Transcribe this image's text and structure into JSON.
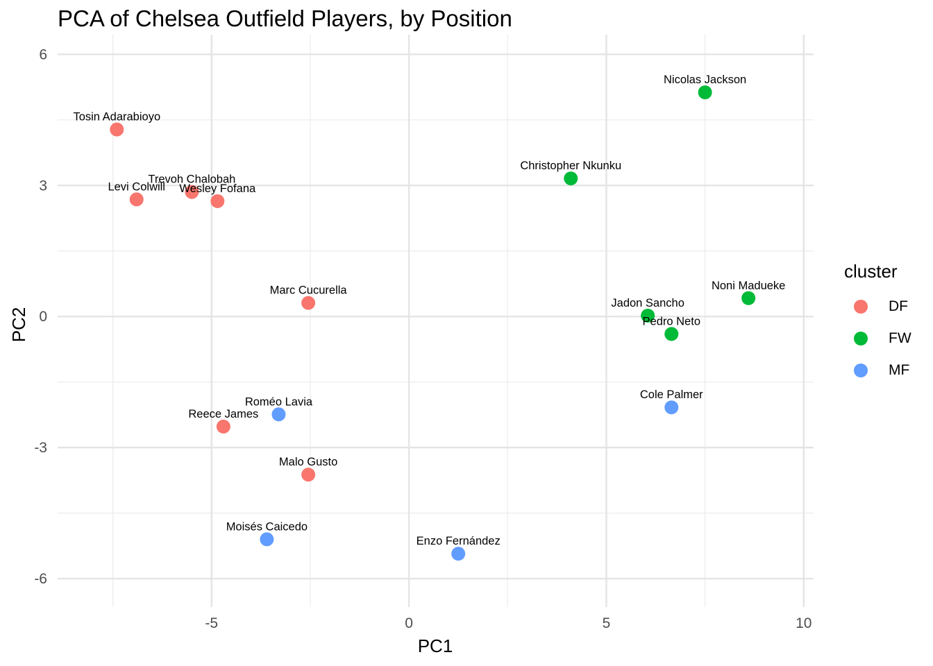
{
  "chart_data": {
    "type": "scatter",
    "title": "PCA of Chelsea Outfield Players, by Position",
    "xlabel": "PC1",
    "ylabel": "PC2",
    "xlim": [
      -8.9,
      10.25
    ],
    "ylim": [
      -6.65,
      6.45
    ],
    "xticks": [
      -5,
      0,
      5,
      10
    ],
    "yticks": [
      -6,
      -3,
      0,
      3,
      6
    ],
    "xtick_labels": [
      "-5",
      "0",
      "5",
      "10"
    ],
    "ytick_labels": [
      "-6",
      "-3",
      "0",
      "3",
      "6"
    ],
    "grid": true,
    "legend": {
      "title": "cluster",
      "placement": "right",
      "entries": [
        {
          "label": "DF",
          "color": "#F8766D"
        },
        {
          "label": "FW",
          "color": "#00BA38"
        },
        {
          "label": "MF",
          "color": "#619CFF"
        }
      ]
    },
    "series": [
      {
        "name": "DF",
        "color": "#F8766D",
        "points": [
          {
            "label": "Tosin Adarabioyo",
            "x": -7.4,
            "y": 4.28
          },
          {
            "label": "Levi Colwill",
            "x": -6.9,
            "y": 2.68
          },
          {
            "label": "Trevoh Chalobah",
            "x": -5.5,
            "y": 2.85
          },
          {
            "label": "Wesley Fofana",
            "x": -4.85,
            "y": 2.64
          },
          {
            "label": "Marc Cucurella",
            "x": -2.55,
            "y": 0.31
          },
          {
            "label": "Reece James",
            "x": -4.7,
            "y": -2.52
          },
          {
            "label": "Malo Gusto",
            "x": -2.55,
            "y": -3.62
          }
        ]
      },
      {
        "name": "FW",
        "color": "#00BA38",
        "points": [
          {
            "label": "Nicolas Jackson",
            "x": 7.5,
            "y": 5.13
          },
          {
            "label": "Christopher Nkunku",
            "x": 4.1,
            "y": 3.16
          },
          {
            "label": "Noni Madueke",
            "x": 8.6,
            "y": 0.42
          },
          {
            "label": "Jadon Sancho",
            "x": 6.05,
            "y": 0.02
          },
          {
            "label": "Pedro Neto",
            "x": 6.65,
            "y": -0.4
          }
        ]
      },
      {
        "name": "MF",
        "color": "#619CFF",
        "points": [
          {
            "label": "Roméo Lavia",
            "x": -3.3,
            "y": -2.24
          },
          {
            "label": "Cole Palmer",
            "x": 6.65,
            "y": -2.08
          },
          {
            "label": "Moisés Caicedo",
            "x": -3.6,
            "y": -5.1
          },
          {
            "label": "Enzo Fernández",
            "x": 1.25,
            "y": -5.43
          }
        ]
      }
    ]
  }
}
